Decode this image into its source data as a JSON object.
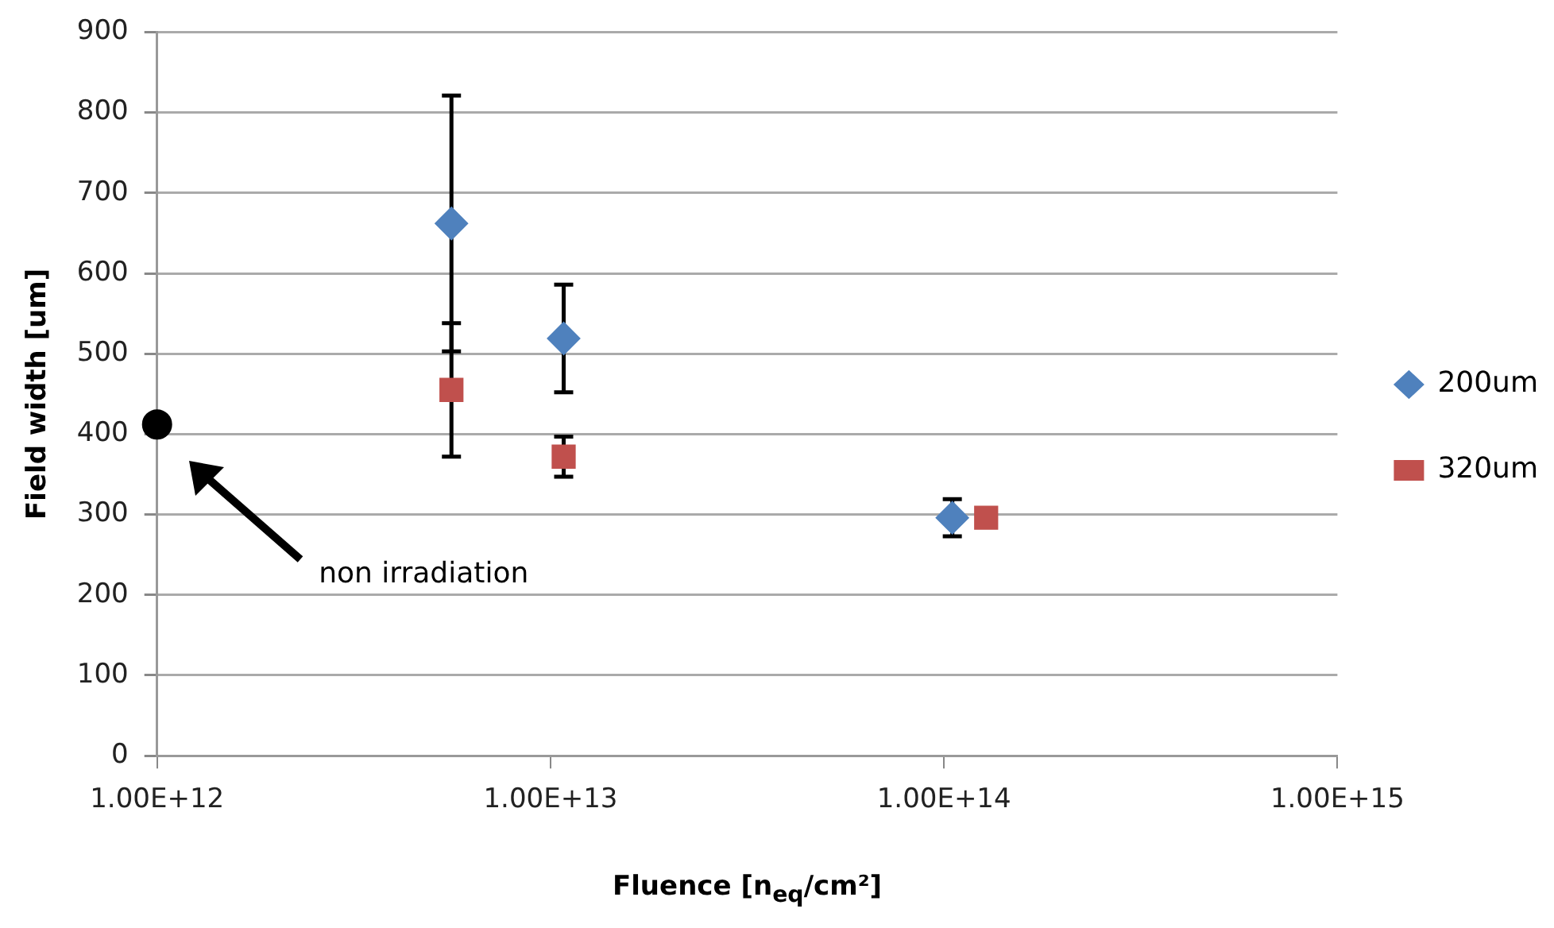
{
  "chart_data": {
    "type": "scatter",
    "xlabel": "Fluence [n$_{eq}$/cm²]",
    "ylabel": "Field width [um]",
    "log": "x",
    "xlim": [
      1000000000000.0,
      1000000000000000.0
    ],
    "xticks": [
      {
        "value": 1000000000000.0,
        "label": "1.00E+12"
      },
      {
        "value": 10000000000000.0,
        "label": "1.00E+13"
      },
      {
        "value": 100000000000000.0,
        "label": "1.00E+14"
      },
      {
        "value": 1000000000000000.0,
        "label": "1.00E+15"
      }
    ],
    "ylim": [
      0,
      900
    ],
    "yticks": [
      0,
      100,
      200,
      300,
      400,
      500,
      600,
      700,
      800,
      900
    ],
    "grid": "y",
    "legend": "right",
    "series": [
      {
        "name": "200um",
        "color": "#4f81bd",
        "marker": "diamond",
        "x": [
          5600000000000.0,
          10800000000000.0,
          105000000000000.0
        ],
        "values": [
          662,
          519,
          296
        ],
        "errors": [
          159,
          67,
          23
        ]
      },
      {
        "name": "320um",
        "color": "#c0504d",
        "marker": "square",
        "x": [
          5600000000000.0,
          10800000000000.0,
          128000000000000.0
        ],
        "values": [
          455,
          372,
          296
        ],
        "errors": [
          83,
          25,
          null
        ]
      },
      {
        "color": "#000000",
        "marker": "circle",
        "x": [
          1000000000000.0
        ],
        "values": [
          412
        ]
      }
    ],
    "annotations": [
      "non irradiation"
    ]
  }
}
